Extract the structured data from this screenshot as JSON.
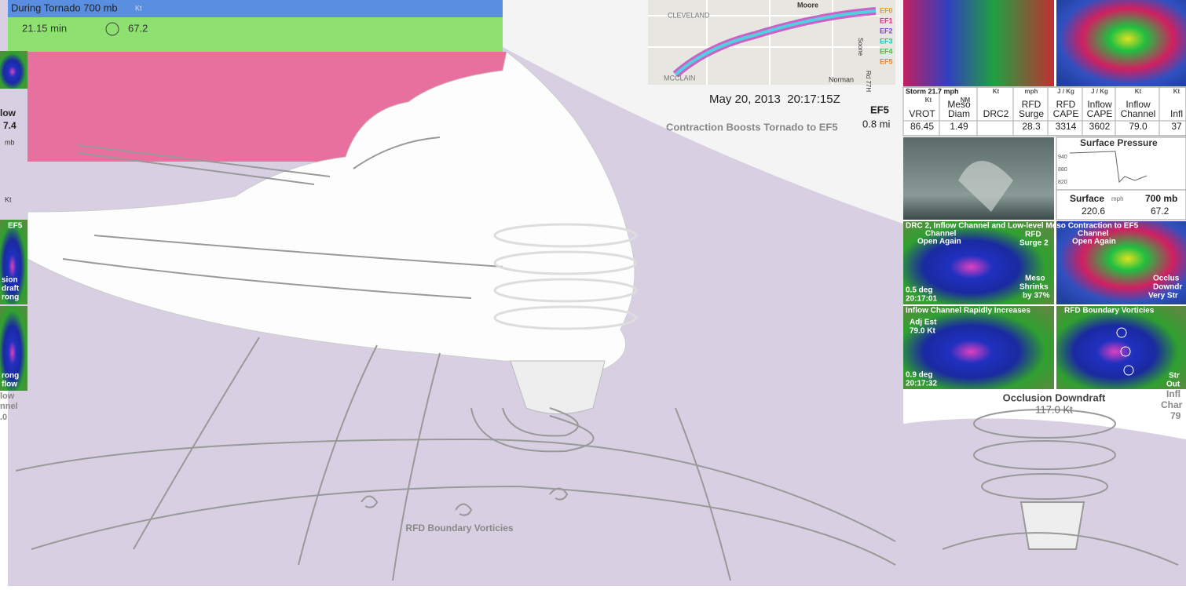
{
  "header": {
    "title": "During Tornado 700 mb",
    "unit": "Kt",
    "elapsed": "21.15 min",
    "value": "67.2"
  },
  "left_strip": {
    "inflow": "low",
    "inflow_value": "7.4",
    "pressure_unit": "mb",
    "speed_unit": "Kt",
    "panel_tag": "EF5",
    "occlusion": [
      "sion",
      "draft",
      "rong"
    ],
    "outflow": [
      "rong",
      "flow"
    ],
    "channel": [
      "low",
      "nnel",
      ".0"
    ]
  },
  "map": {
    "labels": [
      "CLEVELAND",
      "Moore",
      "MCCLAIN",
      "Norman",
      "Soone",
      "Rd 77H"
    ],
    "legend": [
      "EF0",
      "EF1",
      "EF2",
      "EF3",
      "EF4",
      "EF5"
    ]
  },
  "status": {
    "timestamp": "May 20, 2013  20:17:15Z",
    "rating": "EF5",
    "width": "0.8 mi",
    "caption": "Contraction Boosts Tornado to EF5"
  },
  "table": {
    "storm": "Storm 21.7 mph",
    "columns": [
      {
        "unit": "Kt",
        "lines": [
          "VROT"
        ],
        "value": "86.45"
      },
      {
        "unit": "NM",
        "lines": [
          "Meso",
          "Diam"
        ],
        "value": "1.49"
      },
      {
        "unit": "Kt",
        "lines": [
          "DRC2"
        ]
      },
      {
        "unit": "mph",
        "lines": [
          "RFD",
          "Surge"
        ],
        "value": "28.3"
      },
      {
        "unit": "J / Kg",
        "lines": [
          "RFD",
          "CAPE"
        ],
        "value": "3314"
      },
      {
        "unit": "J / Kg",
        "lines": [
          "Inflow",
          "CAPE"
        ],
        "value": "3602"
      },
      {
        "unit": "Kt",
        "lines": [
          "Inflow",
          "Channel"
        ],
        "value": "79.0"
      },
      {
        "unit": "Kt",
        "lines": [
          "Infl"
        ],
        "value": "37"
      }
    ]
  },
  "pressure": {
    "title": "Surface Pressure",
    "ticks": [
      "940",
      "880",
      "820"
    ],
    "surface_label": "Surface",
    "surface_unit": "mph",
    "surface_value": "220.6",
    "upper_label": "700 mb",
    "upper_value": "67.2"
  },
  "radar": {
    "banner": "DRC 2, Inflow Channel and Low-level Meso Contraction to EF5",
    "panels": [
      {
        "annotations": [
          "Channel",
          "Open Again",
          "RFD",
          "Surge 2",
          "Meso",
          "Shrinks",
          "by 37%",
          "0.5 deg",
          "20:17:01"
        ]
      },
      {
        "annotations": [
          "Channel",
          "Open Again",
          "Occlus",
          "Downdr",
          "Very Str"
        ]
      },
      {
        "title": "Inflow Channel Rapidly Increases",
        "annotations": [
          "Adj Est",
          "79.0 Kt",
          "0.9 deg",
          "20:17:32"
        ]
      },
      {
        "title": "RFD Boundary Vorticies",
        "annotations": [
          "Str",
          "Out"
        ]
      }
    ]
  },
  "inset": {
    "label": "Occlusion Downdraft",
    "value": "117.0 Kt",
    "side": [
      "Infl",
      "Char",
      "79"
    ]
  },
  "scene": {
    "caption": "RFD Boundary Vorticies"
  }
}
